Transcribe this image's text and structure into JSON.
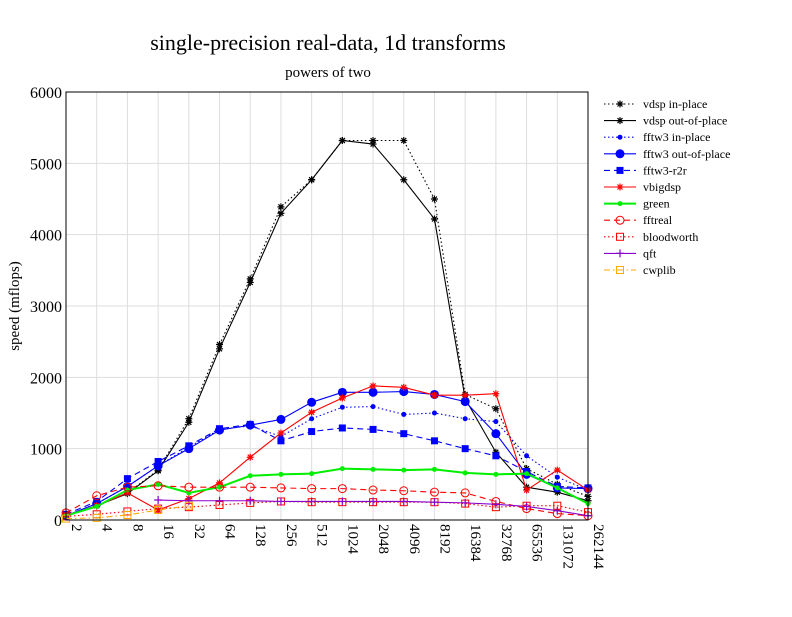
{
  "chart_data": {
    "type": "line",
    "title": "single-precision real-data, 1d transforms",
    "subtitle": "powers of two",
    "xlabel": "",
    "ylabel": "speed (mflops)",
    "ylim": [
      0,
      6000
    ],
    "yticks": [
      "0",
      "1000",
      "2000",
      "3000",
      "4000",
      "5000",
      "6000"
    ],
    "grid": true,
    "legend_position": "right",
    "categories": [
      "2",
      "4",
      "8",
      "16",
      "32",
      "64",
      "128",
      "256",
      "512",
      "1024",
      "2048",
      "4096",
      "8192",
      "16384",
      "32768",
      "65536",
      "131072",
      "262144"
    ],
    "series": [
      {
        "name": "vdsp in-place",
        "color": "#000000",
        "dash": "dotted",
        "marker": "star",
        "values": [
          60,
          200,
          380,
          700,
          1420,
          2460,
          3380,
          4390,
          4770,
          5320,
          5320,
          5320,
          4500,
          1760,
          1560,
          720,
          500,
          330
        ]
      },
      {
        "name": "vdsp out-of-place",
        "color": "#000000",
        "dash": "solid",
        "marker": "star",
        "values": [
          60,
          200,
          370,
          690,
          1370,
          2400,
          3330,
          4300,
          4770,
          5320,
          5270,
          4770,
          4220,
          1700,
          950,
          460,
          390,
          270
        ]
      },
      {
        "name": "fftw3 in-place",
        "color": "#0000ff",
        "dash": "dotted",
        "marker": "dot",
        "values": [
          60,
          230,
          470,
          760,
          1020,
          1270,
          1320,
          1170,
          1420,
          1580,
          1590,
          1480,
          1500,
          1420,
          1380,
          900,
          600,
          420
        ]
      },
      {
        "name": "fftw3 out-of-place",
        "color": "#0000ff",
        "dash": "solid",
        "marker": "bigdot",
        "values": [
          60,
          230,
          470,
          760,
          1000,
          1260,
          1330,
          1410,
          1650,
          1790,
          1790,
          1800,
          1760,
          1660,
          1210,
          640,
          450,
          440
        ]
      },
      {
        "name": "fftw3-r2r",
        "color": "#0000ff",
        "dash": "dashed",
        "marker": "square",
        "values": [
          80,
          260,
          580,
          820,
          1040,
          1280,
          1340,
          1110,
          1240,
          1290,
          1270,
          1210,
          1110,
          1000,
          900,
          680,
          470,
          450
        ]
      },
      {
        "name": "vbigdsp",
        "color": "#ff0000",
        "dash": "solid",
        "marker": "star",
        "values": [
          60,
          200,
          380,
          140,
          300,
          520,
          880,
          1220,
          1510,
          1710,
          1880,
          1860,
          1750,
          1750,
          1770,
          420,
          700,
          420
        ]
      },
      {
        "name": "green",
        "color": "#00ee00",
        "dash": "solid",
        "marker": "dot",
        "values": [
          60,
          190,
          420,
          500,
          380,
          460,
          620,
          640,
          650,
          720,
          710,
          700,
          710,
          660,
          640,
          650,
          450,
          230
        ]
      },
      {
        "name": "fftreal",
        "color": "#ff0000",
        "dash": "dashed",
        "marker": "circle",
        "values": [
          100,
          340,
          460,
          480,
          460,
          460,
          460,
          450,
          440,
          440,
          420,
          410,
          390,
          380,
          260,
          160,
          90,
          60
        ]
      },
      {
        "name": "bloodworth",
        "color": "#ff0000",
        "dash": "dotted",
        "marker": "opensquare",
        "values": [
          50,
          80,
          120,
          160,
          180,
          210,
          240,
          260,
          250,
          250,
          250,
          250,
          250,
          230,
          180,
          200,
          200,
          110
        ]
      },
      {
        "name": "qft",
        "color": "#8800cc",
        "dash": "solid",
        "marker": "plus",
        "values": [
          null,
          null,
          null,
          280,
          270,
          270,
          270,
          260,
          260,
          260,
          260,
          260,
          250,
          240,
          220,
          190,
          130,
          60
        ]
      },
      {
        "name": "cwplib",
        "color": "#ffaa00",
        "dash": "dashdot",
        "marker": "opensquare",
        "values": [
          20,
          30,
          70,
          140,
          200,
          null,
          null,
          null,
          null,
          null,
          null,
          null,
          null,
          null,
          null,
          null,
          null,
          null
        ]
      }
    ]
  }
}
